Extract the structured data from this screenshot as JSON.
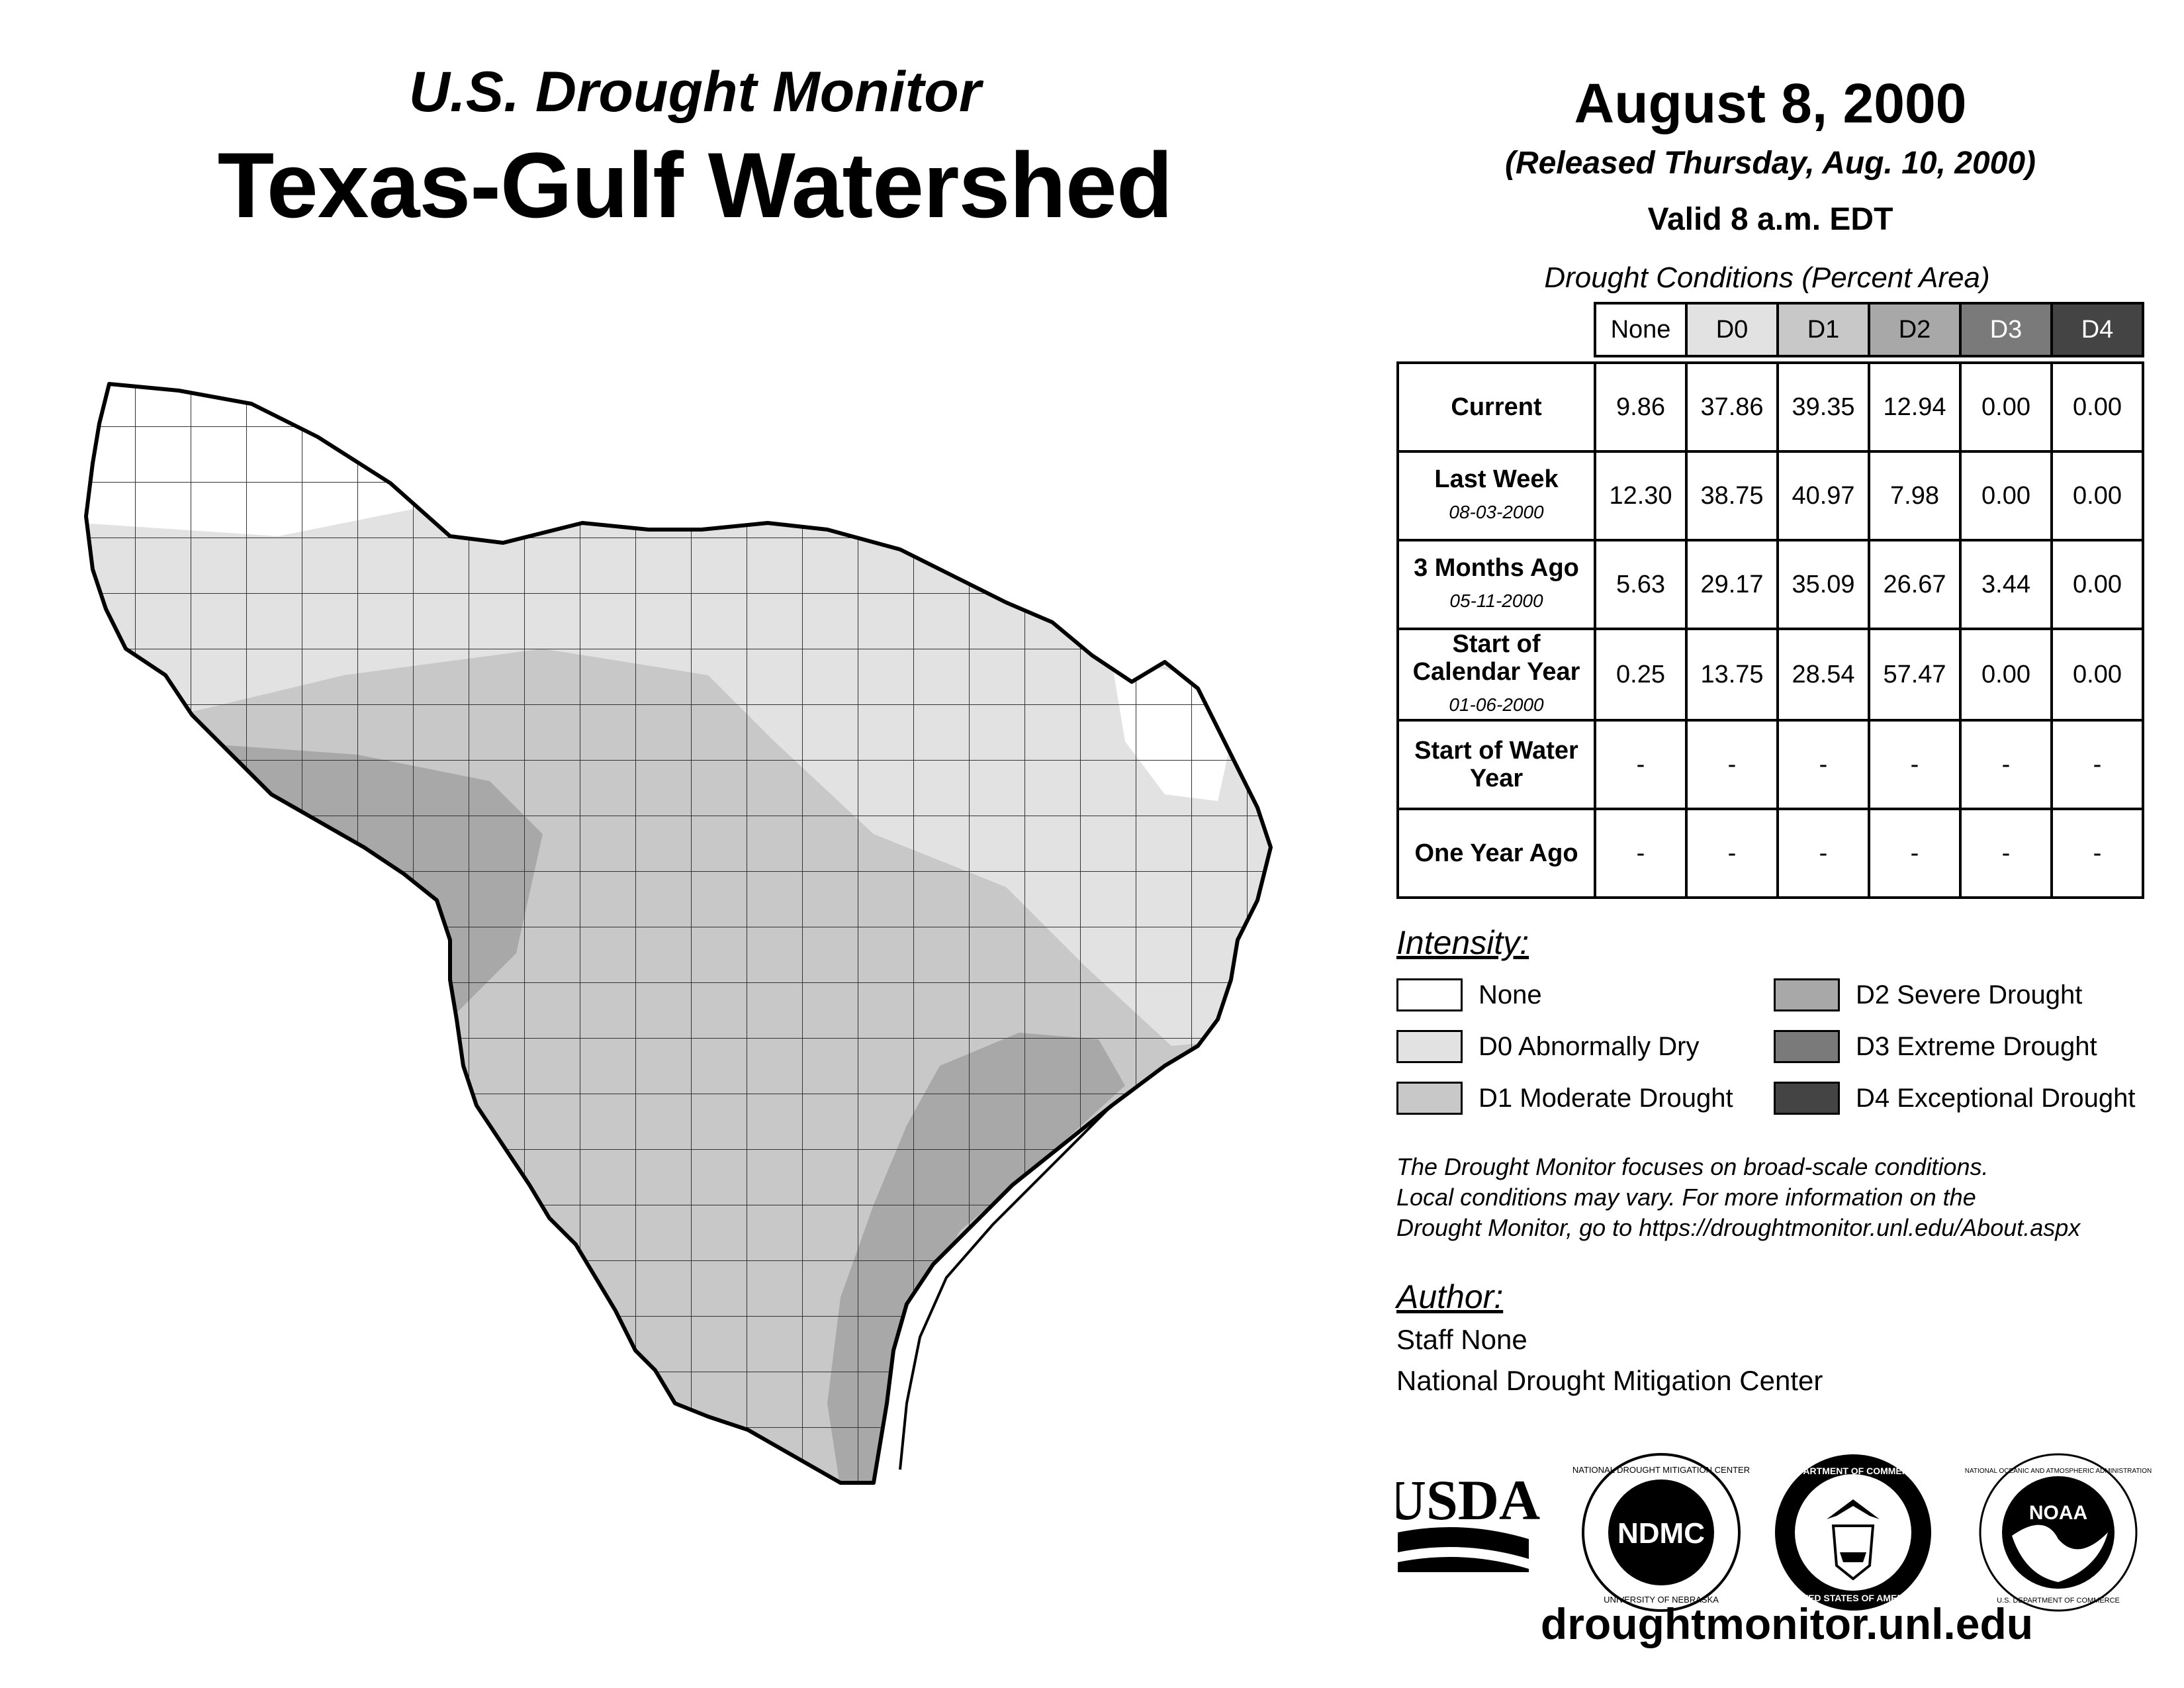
{
  "header": {
    "subtitle": "U.S. Drought Monitor",
    "title": "Texas-Gulf Watershed",
    "date": "August 8, 2000",
    "released": "(Released Thursday, Aug. 10, 2000)",
    "valid": "Valid 8 a.m. EDT"
  },
  "conditions": {
    "title": "Drought Conditions (Percent Area)",
    "columns": [
      "None",
      "D0",
      "D1",
      "D2",
      "D3",
      "D4"
    ],
    "rows": [
      {
        "label": "Current",
        "date": "",
        "values": [
          "9.86",
          "37.86",
          "39.35",
          "12.94",
          "0.00",
          "0.00"
        ]
      },
      {
        "label": "Last Week",
        "date": "08-03-2000",
        "values": [
          "12.30",
          "38.75",
          "40.97",
          "7.98",
          "0.00",
          "0.00"
        ]
      },
      {
        "label": "3 Months Ago",
        "date": "05-11-2000",
        "values": [
          "5.63",
          "29.17",
          "35.09",
          "26.67",
          "3.44",
          "0.00"
        ]
      },
      {
        "label": "Start of Calendar Year",
        "date": "01-06-2000",
        "values": [
          "0.25",
          "13.75",
          "28.54",
          "57.47",
          "0.00",
          "0.00"
        ]
      },
      {
        "label": "Start of Water Year",
        "date": "",
        "values": [
          "-",
          "-",
          "-",
          "-",
          "-",
          "-"
        ]
      },
      {
        "label": "One Year Ago",
        "date": "",
        "values": [
          "-",
          "-",
          "-",
          "-",
          "-",
          "-"
        ]
      }
    ]
  },
  "legend": {
    "title": "Intensity:",
    "items": [
      {
        "label": "None",
        "color": "#ffffff"
      },
      {
        "label": "D0 Abnormally Dry",
        "color": "#e2e2e2"
      },
      {
        "label": "D1 Moderate Drought",
        "color": "#c8c8c8"
      },
      {
        "label": "D2 Severe Drought",
        "color": "#a8a8a8"
      },
      {
        "label": "D3 Extreme Drought",
        "color": "#7a7a7a"
      },
      {
        "label": "D4 Exceptional Drought",
        "color": "#444444"
      }
    ]
  },
  "disclaimer": {
    "line1": "The Drought Monitor focuses on broad-scale conditions.",
    "line2": "Local conditions may vary. For more information on the",
    "line3": "Drought Monitor, go to https://droughtmonitor.unl.edu/About.aspx"
  },
  "author": {
    "title": "Author:",
    "name": "Staff None",
    "org": "National Drought Mitigation Center"
  },
  "logos": {
    "usda": "USDA",
    "ndmc": "NDMC",
    "ndmc_ring_top": "NATIONAL DROUGHT MITIGATION CENTER",
    "ndmc_ring_bottom": "UNIVERSITY OF NEBRASKA",
    "doc_ring_top": "DEPARTMENT OF COMMERCE",
    "doc_ring_bottom": "UNITED STATES OF AMERICA",
    "noaa": "NOAA",
    "noaa_ring_top": "NATIONAL OCEANIC AND ATMOSPHERIC ADMINISTRATION",
    "noaa_ring_bottom": "U.S. DEPARTMENT OF COMMERCE"
  },
  "website": "droughtmonitor.unl.edu",
  "map_colors": {
    "none": "#ffffff",
    "d0": "#e2e2e2",
    "d1": "#c8c8c8",
    "d2": "#a8a8a8",
    "outline": "#000000",
    "county_lines": "#333333"
  }
}
